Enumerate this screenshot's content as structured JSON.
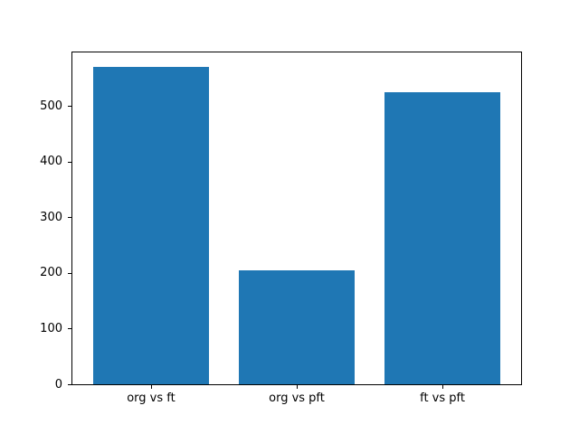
{
  "chart_data": {
    "type": "bar",
    "categories": [
      "org vs ft",
      "org vs pft",
      "ft vs pft"
    ],
    "values": [
      570,
      205,
      525
    ],
    "title": "",
    "xlabel": "",
    "ylabel": "",
    "ylim": [
      0,
      596
    ],
    "yticks": [
      0,
      100,
      200,
      300,
      400,
      500
    ],
    "bar_width_fraction": 0.8,
    "bar_color": "#1f77b4",
    "axis_color": "#000000",
    "background_color": "#ffffff",
    "grid": false,
    "legend": false
  }
}
